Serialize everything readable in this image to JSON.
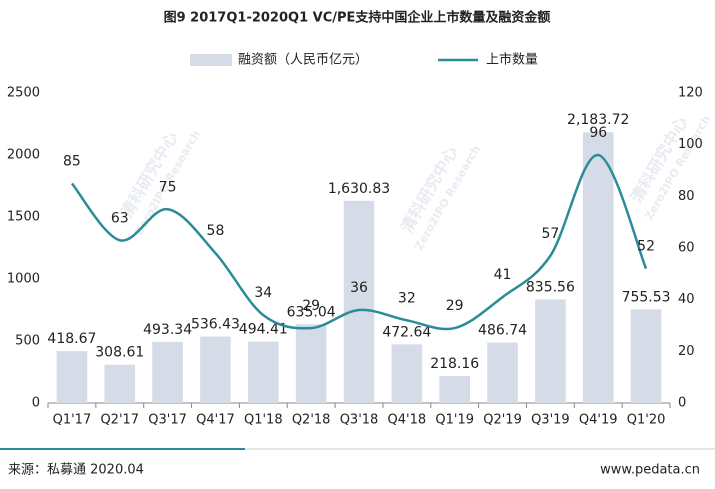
{
  "chart_data": {
    "type": "bar-line",
    "title": "图9 2017Q1-2020Q1 VC/PE支持中国企业上市数量及融资金额",
    "categories": [
      "Q1'17",
      "Q2'17",
      "Q3'17",
      "Q4'17",
      "Q1'18",
      "Q2'18",
      "Q3'18",
      "Q4'18",
      "Q1'19",
      "Q2'19",
      "Q3'19",
      "Q4'19",
      "Q1'20"
    ],
    "series": [
      {
        "name": "融资额（人民币亿元）",
        "type": "bar",
        "color": "#d6dce7",
        "values": [
          418.67,
          308.61,
          493.34,
          536.43,
          494.41,
          635.04,
          1630.83,
          472.64,
          218.16,
          486.74,
          835.56,
          2183.72,
          755.53
        ],
        "value_labels": [
          "418.67",
          "308.61",
          "493.34",
          "536.43",
          "494.41",
          "635.04",
          "1,630.83",
          "472.64",
          "218.16",
          "486.74",
          "835.56",
          "2,183.72",
          "755.53"
        ]
      },
      {
        "name": "上市数量",
        "type": "line",
        "axis": "y2",
        "color": "#2b8c99",
        "values": [
          85,
          63,
          75,
          58,
          34,
          29,
          36,
          32,
          29,
          41,
          57,
          96,
          52
        ]
      }
    ],
    "ylim": [
      0,
      2500
    ],
    "yticks": [
      0,
      500,
      1000,
      1500,
      2000,
      2500
    ],
    "y2lim": [
      0,
      120
    ],
    "y2ticks": [
      0,
      20,
      40,
      60,
      80,
      100,
      120
    ],
    "grid": false,
    "watermark": [
      "清科研究中心",
      "Zero2IPO Research"
    ],
    "source": "来源：私募通 2020.04",
    "website": "www.pedata.cn"
  }
}
